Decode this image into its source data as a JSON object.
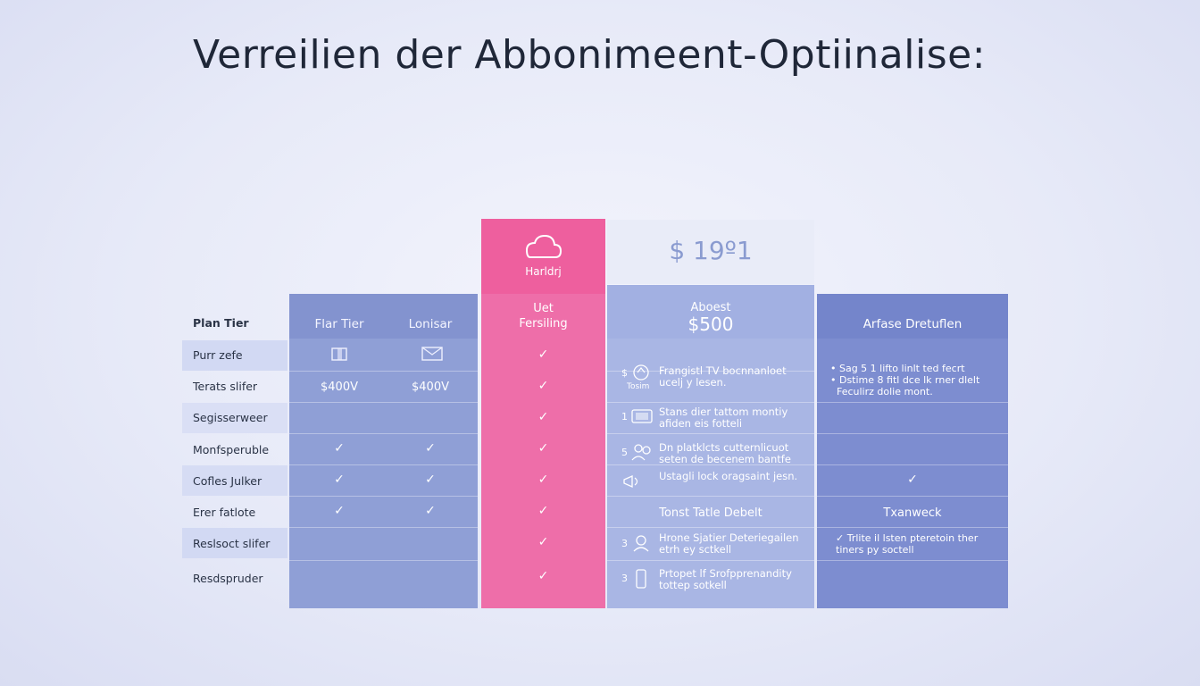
{
  "title": "Verreilien der Abbonimeent-Optiinalise:",
  "labels": [
    "Plan Tier",
    "Purr zefe",
    "Terats slifer",
    "Segisserweer",
    "Monfsperuble",
    "Cofles Julker",
    "Erer fatlote",
    "Reslsoct slifer",
    "Resdspruder"
  ],
  "standard": {
    "headers": [
      "Flar Tier",
      "Lonisar"
    ],
    "prices": [
      "$400V",
      "$400V"
    ],
    "checks_col1": [
      false,
      false,
      false,
      true,
      true,
      true,
      false,
      false
    ],
    "checks_col2": [
      false,
      false,
      false,
      true,
      true,
      true,
      false,
      false
    ]
  },
  "featured": {
    "icon_label": "Harldrj",
    "header_line1": "Uet",
    "header_line2": "Fersiling"
  },
  "premium": {
    "price_top": "$ 19º1",
    "header_line1": "Aboest",
    "header_line2": "$500",
    "features": [
      {
        "num": "$",
        "text": "Frangistl TV bocnnanloet ucelj y lesen.",
        "sub": "Tosim"
      },
      {
        "num": "1",
        "text": "Stans dier tattom montiy afiden eis fotteli"
      },
      {
        "num": "5",
        "text": "Dn platklcts cutternlicuot seten de becenem bantfe"
      },
      {
        "num": "",
        "text": "Ustagli lock oragsaint jesn."
      },
      {
        "num": "",
        "text": "Tonst Tatle Debelt"
      },
      {
        "num": "3",
        "text": "Hrone Sjatier Deteriegailen etrh ey sctkell"
      },
      {
        "num": "3",
        "text": "Prtopet lf Srofpprenandity tottep sotkell"
      }
    ]
  },
  "enterprise": {
    "header": "Arfase Dretuflen",
    "notes": [
      "• Sag 5 1 lifto linlt ted fecrt",
      "• Dstime 8 fitl dce lk rner dlelt",
      "  Feculirz dolie mont."
    ],
    "check_row5": true,
    "row6_text": "Txanweck",
    "row7_text": "✓ Trlite il lsten pteretoin ther tiners py soctell"
  },
  "colors": {
    "pink": "#ee6ea9",
    "standard": "#8f9fd6",
    "light": "#a9b6e4",
    "dark": "#7d8dd0",
    "title": "#1f2738"
  },
  "icons": [
    "cloud-icon",
    "folder-icon",
    "mail-icon",
    "check-icon",
    "tv-icon",
    "monitor-icon",
    "people-icon",
    "megaphone-icon",
    "device-icon"
  ]
}
